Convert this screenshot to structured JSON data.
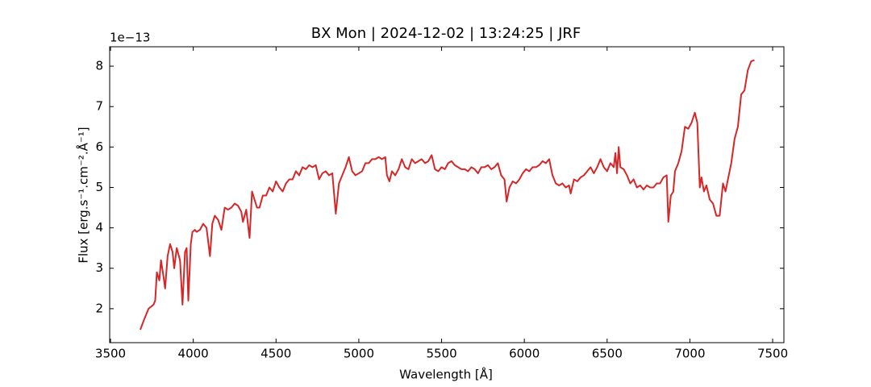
{
  "chart_data": {
    "type": "line",
    "title": "BX Mon | 2024-12-02 | 13:24:25 | JRF",
    "x_label": "Wavelength [Å]",
    "y_label": "Flux [erg.s⁻¹.cm⁻².Å⁻¹]",
    "y_offset_label": "1e−13",
    "xlim": [
      3495,
      7568
    ],
    "ylim": [
      1.16,
      8.48
    ],
    "xticks": [
      3500,
      4000,
      4500,
      5000,
      5500,
      6000,
      6500,
      7000,
      7500
    ],
    "yticks": [
      2,
      3,
      4,
      5,
      6,
      7,
      8
    ],
    "x": [
      3680,
      3700,
      3730,
      3760,
      3770,
      3780,
      3795,
      3805,
      3820,
      3830,
      3845,
      3860,
      3875,
      3885,
      3900,
      3920,
      3935,
      3950,
      3960,
      3970,
      3985,
      3995,
      4010,
      4020,
      4040,
      4060,
      4080,
      4101,
      4115,
      4130,
      4150,
      4170,
      4190,
      4210,
      4230,
      4250,
      4270,
      4290,
      4300,
      4320,
      4340,
      4355,
      4370,
      4385,
      4400,
      4420,
      4440,
      4460,
      4480,
      4500,
      4520,
      4540,
      4560,
      4580,
      4600,
      4620,
      4640,
      4660,
      4680,
      4700,
      4720,
      4740,
      4760,
      4780,
      4800,
      4820,
      4840,
      4861,
      4880,
      4900,
      4920,
      4940,
      4960,
      4980,
      5000,
      5020,
      5040,
      5060,
      5080,
      5100,
      5120,
      5140,
      5160,
      5170,
      5185,
      5200,
      5220,
      5240,
      5260,
      5280,
      5300,
      5320,
      5340,
      5360,
      5380,
      5400,
      5420,
      5440,
      5460,
      5480,
      5500,
      5520,
      5540,
      5560,
      5580,
      5600,
      5620,
      5640,
      5660,
      5680,
      5700,
      5720,
      5740,
      5760,
      5780,
      5800,
      5820,
      5840,
      5860,
      5880,
      5893,
      5910,
      5930,
      5950,
      5970,
      5990,
      6010,
      6030,
      6050,
      6070,
      6090,
      6110,
      6130,
      6150,
      6170,
      6190,
      6210,
      6230,
      6250,
      6270,
      6280,
      6300,
      6320,
      6340,
      6360,
      6380,
      6400,
      6420,
      6440,
      6460,
      6480,
      6500,
      6520,
      6540,
      6550,
      6560,
      6570,
      6580,
      6600,
      6620,
      6640,
      6660,
      6680,
      6700,
      6720,
      6740,
      6760,
      6780,
      6800,
      6820,
      6840,
      6860,
      6870,
      6885,
      6900,
      6910,
      6930,
      6950,
      6970,
      6990,
      7010,
      7030,
      7045,
      7060,
      7070,
      7085,
      7100,
      7120,
      7140,
      7160,
      7180,
      7200,
      7215,
      7230,
      7250,
      7270,
      7290,
      7310,
      7330,
      7350,
      7370,
      7390
    ],
    "series": [
      {
        "name": "BX Mon",
        "color": "#d62728",
        "values": [
          1.48,
          1.7,
          2.0,
          2.1,
          2.2,
          2.9,
          2.7,
          3.2,
          2.8,
          2.5,
          3.3,
          3.6,
          3.4,
          3.0,
          3.5,
          3.2,
          2.1,
          3.4,
          3.5,
          2.2,
          3.6,
          3.9,
          3.95,
          3.9,
          3.95,
          4.1,
          4.0,
          3.3,
          4.1,
          4.3,
          4.2,
          3.95,
          4.5,
          4.45,
          4.5,
          4.6,
          4.55,
          4.4,
          4.15,
          4.45,
          3.75,
          4.9,
          4.7,
          4.5,
          4.5,
          4.8,
          4.8,
          5.0,
          4.9,
          5.15,
          5.0,
          4.9,
          5.1,
          5.2,
          5.2,
          5.4,
          5.3,
          5.5,
          5.45,
          5.55,
          5.5,
          5.55,
          5.2,
          5.35,
          5.4,
          5.3,
          5.35,
          4.35,
          5.1,
          5.3,
          5.5,
          5.75,
          5.4,
          5.3,
          5.35,
          5.4,
          5.6,
          5.6,
          5.7,
          5.7,
          5.75,
          5.7,
          5.75,
          5.3,
          5.15,
          5.4,
          5.3,
          5.45,
          5.7,
          5.5,
          5.45,
          5.7,
          5.6,
          5.65,
          5.7,
          5.6,
          5.65,
          5.8,
          5.45,
          5.4,
          5.5,
          5.45,
          5.6,
          5.65,
          5.55,
          5.5,
          5.45,
          5.45,
          5.4,
          5.5,
          5.45,
          5.35,
          5.5,
          5.5,
          5.55,
          5.45,
          5.5,
          5.6,
          5.3,
          5.2,
          4.65,
          5.0,
          5.15,
          5.1,
          5.2,
          5.35,
          5.45,
          5.4,
          5.5,
          5.5,
          5.55,
          5.65,
          5.6,
          5.7,
          5.3,
          5.1,
          5.05,
          5.1,
          5.0,
          5.05,
          4.85,
          5.2,
          5.15,
          5.25,
          5.3,
          5.4,
          5.5,
          5.35,
          5.5,
          5.7,
          5.5,
          5.4,
          5.6,
          5.5,
          5.85,
          5.35,
          6.0,
          5.5,
          5.45,
          5.3,
          5.1,
          5.2,
          5.0,
          5.05,
          4.95,
          5.05,
          5.0,
          5.0,
          5.1,
          5.1,
          5.25,
          5.3,
          4.15,
          4.8,
          4.9,
          5.4,
          5.6,
          5.9,
          6.5,
          6.45,
          6.6,
          6.85,
          6.6,
          5.0,
          5.25,
          4.9,
          5.05,
          4.7,
          4.6,
          4.3,
          4.3,
          5.1,
          4.9,
          5.2,
          5.6,
          6.2,
          6.5,
          7.3,
          7.4,
          7.9,
          8.12,
          8.15
        ]
      }
    ]
  }
}
